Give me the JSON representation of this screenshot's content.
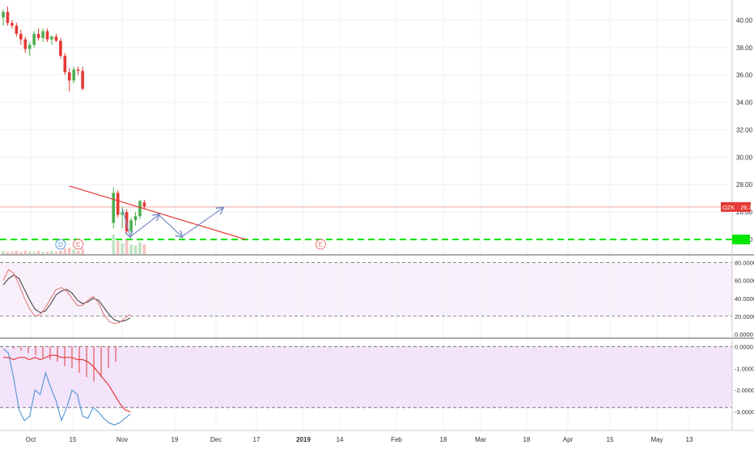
{
  "chart_data": {
    "type": "candlestick",
    "symbol": "OZK",
    "last_price": "26.37",
    "colors": {
      "up": "#4caf50",
      "down": "#e53935",
      "grid": "#eef0f3",
      "axis_text": "#333333",
      "trendline": "#e53935",
      "support": "#00e600",
      "arrows": "#7b8cc9",
      "stoch_k": "#e57373",
      "stoch_d": "#333333",
      "stoch_band": "#f8f0fb",
      "lower_band": "#f3e3fb",
      "lower_red": "#e53935",
      "lower_blue": "#5b9bd5",
      "price_line": "#f4a7a7"
    },
    "price_axis": {
      "ticks": [
        "40.00",
        "38.00",
        "36.00",
        "34.00",
        "32.00",
        "30.00",
        "28.00",
        "26.00",
        "24.00"
      ],
      "range": [
        23.0,
        41.0
      ]
    },
    "x_axis": {
      "ticks": [
        "Oct",
        "15",
        "Nov",
        "19",
        "Dec",
        "17",
        "2019",
        "14",
        "Feb",
        "18",
        "Mar",
        "18",
        "Apr",
        "15",
        "May",
        "13"
      ],
      "bold_ticks": [
        "2019"
      ]
    },
    "candles": [
      {
        "o": 40.2,
        "h": 40.8,
        "l": 39.6,
        "c": 40.6
      },
      {
        "o": 40.6,
        "h": 41.0,
        "l": 39.6,
        "c": 39.8
      },
      {
        "o": 39.8,
        "h": 40.0,
        "l": 39.4,
        "c": 39.6
      },
      {
        "o": 39.6,
        "h": 39.8,
        "l": 38.8,
        "c": 39.0
      },
      {
        "o": 39.0,
        "h": 39.3,
        "l": 38.2,
        "c": 38.6
      },
      {
        "o": 38.6,
        "h": 38.8,
        "l": 37.6,
        "c": 37.9
      },
      {
        "o": 37.9,
        "h": 38.4,
        "l": 37.4,
        "c": 38.2
      },
      {
        "o": 38.2,
        "h": 39.2,
        "l": 38.0,
        "c": 39.0
      },
      {
        "o": 39.0,
        "h": 39.4,
        "l": 38.5,
        "c": 38.7
      },
      {
        "o": 38.7,
        "h": 39.4,
        "l": 38.4,
        "c": 39.2
      },
      {
        "o": 39.2,
        "h": 39.4,
        "l": 38.4,
        "c": 38.6
      },
      {
        "o": 38.6,
        "h": 38.9,
        "l": 38.2,
        "c": 38.8
      },
      {
        "o": 38.8,
        "h": 39.0,
        "l": 38.4,
        "c": 38.5
      },
      {
        "o": 38.5,
        "h": 38.7,
        "l": 37.2,
        "c": 37.4
      },
      {
        "o": 37.4,
        "h": 37.6,
        "l": 36.0,
        "c": 36.2
      },
      {
        "o": 36.2,
        "h": 36.5,
        "l": 34.8,
        "c": 35.6
      },
      {
        "o": 35.6,
        "h": 36.6,
        "l": 35.4,
        "c": 36.4
      },
      {
        "o": 36.4,
        "h": 36.6,
        "l": 36.0,
        "c": 36.3
      },
      {
        "o": 36.3,
        "h": 36.6,
        "l": 34.9,
        "c": 35.0
      },
      null,
      null,
      null,
      null,
      null,
      null,
      {
        "o": 25.2,
        "h": 27.8,
        "l": 24.8,
        "c": 27.4
      },
      {
        "o": 27.4,
        "h": 27.6,
        "l": 25.6,
        "c": 25.8
      },
      {
        "o": 25.8,
        "h": 26.4,
        "l": 24.8,
        "c": 26.0
      },
      {
        "o": 26.0,
        "h": 26.2,
        "l": 24.4,
        "c": 24.6
      },
      {
        "o": 24.6,
        "h": 25.6,
        "l": 24.3,
        "c": 25.4
      },
      {
        "o": 25.4,
        "h": 26.0,
        "l": 25.0,
        "c": 25.7
      },
      {
        "o": 25.7,
        "h": 26.9,
        "l": 25.5,
        "c": 26.8
      },
      {
        "o": 26.7,
        "h": 26.9,
        "l": 26.2,
        "c": 26.4
      }
    ],
    "volume": [
      3,
      2,
      2,
      3,
      2,
      3,
      2,
      2,
      3,
      2,
      2,
      3,
      2,
      3,
      5,
      6,
      4,
      3,
      5,
      0,
      0,
      0,
      0,
      0,
      0,
      18,
      12,
      10,
      14,
      9,
      8,
      11,
      9
    ],
    "events": [
      {
        "label": "D",
        "color": "#5b9bd5",
        "bar": 13
      },
      {
        "label": "E",
        "color": "#e57373",
        "bar": 17
      },
      {
        "label": "E",
        "color": "#e57373",
        "bar": 72
      }
    ],
    "support_level": 24.0,
    "trendline": {
      "from": {
        "bar": 15,
        "price": 27.9
      },
      "to": {
        "bar": 55,
        "price": 24.0
      }
    },
    "arrow_path": [
      {
        "bar": 27.0,
        "price": 26.3
      },
      {
        "bar": 28.8,
        "price": 24.2
      },
      {
        "bar": 35.3,
        "price": 25.8
      },
      {
        "bar": 40.5,
        "price": 24.2
      },
      {
        "bar": 49.8,
        "price": 26.3
      }
    ],
    "stoch": {
      "ticks": [
        "80.0000",
        "60.0000",
        "40.0000",
        "20.0000",
        "0.0000"
      ],
      "range": [
        0,
        85
      ],
      "band": [
        20,
        80
      ],
      "k": [
        60,
        72,
        68,
        55,
        40,
        28,
        20,
        22,
        30,
        40,
        50,
        52,
        48,
        40,
        32,
        32,
        38,
        42,
        35,
        22,
        14,
        12,
        13,
        18,
        22
      ],
      "d": [
        55,
        62,
        66,
        62,
        50,
        38,
        28,
        24,
        26,
        34,
        44,
        48,
        50,
        46,
        38,
        34,
        36,
        40,
        38,
        30,
        22,
        16,
        14,
        15,
        18
      ]
    },
    "lower": {
      "ticks": [
        "0.0000",
        "-1.0000",
        "-2.0000",
        "-3.0000"
      ],
      "range": [
        -3.7,
        0.2
      ],
      "band": [
        -2.8,
        0.0
      ],
      "red": [
        -0.5,
        -0.5,
        -0.6,
        -0.5,
        -0.5,
        -0.6,
        -0.5,
        -0.6,
        -0.5,
        -0.4,
        -0.4,
        -0.5,
        -0.5,
        -0.5,
        -0.6,
        -0.6,
        -0.7,
        -0.9,
        -1.2,
        -1.5,
        -1.8,
        -2.2,
        -2.6,
        -2.9,
        -3.0
      ],
      "blue": [
        -0.1,
        -0.3,
        -1.5,
        -2.9,
        -3.4,
        -3.2,
        -2.0,
        -2.2,
        -1.2,
        -1.9,
        -2.5,
        -3.4,
        -2.8,
        -2.0,
        -2.2,
        -3.2,
        -3.3,
        -2.8,
        -3.0,
        -3.3,
        -3.5,
        -3.6,
        -3.5,
        -3.3,
        -3.1
      ],
      "hist": [
        0,
        -0.1,
        -0.2,
        -0.3,
        -0.4,
        -0.5,
        -0.6,
        -0.7,
        -0.9,
        -1.0,
        -1.2,
        -1.4,
        -1.6,
        -1.4,
        -1.0,
        -0.7
      ]
    }
  }
}
